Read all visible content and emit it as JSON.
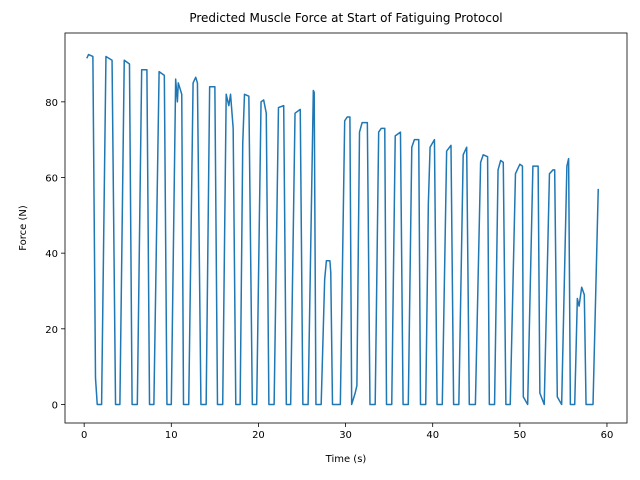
{
  "chart_data": {
    "type": "line",
    "title": "Predicted Muscle Force at Start of Fatiguing Protocol",
    "x_label": "Time (s)",
    "y_label": "Force (N)",
    "xlim": [
      -2.2,
      62.3
    ],
    "ylim": [
      -4.9,
      98.2
    ],
    "xticks": [
      0,
      10,
      20,
      30,
      40,
      50,
      60
    ],
    "yticks": [
      0,
      20,
      40,
      60,
      80
    ],
    "grid": false,
    "series": [
      {
        "color": "#1f77b4",
        "x": [
          0.3,
          0.5,
          1.0,
          1.3,
          1.5,
          2.0,
          2.5,
          3.2,
          3.6,
          4.1,
          4.6,
          5.2,
          5.5,
          6.1,
          6.6,
          7.2,
          7.5,
          8.0,
          8.6,
          9.2,
          9.5,
          10.0,
          10.5,
          10.7,
          10.8,
          11.2,
          11.4,
          12.0,
          12.5,
          12.8,
          13.0,
          13.4,
          14.0,
          14.4,
          15.0,
          15.3,
          15.9,
          16.3,
          16.6,
          16.8,
          17.1,
          17.4,
          17.9,
          18.2,
          18.4,
          18.9,
          19.3,
          19.8,
          20.3,
          20.6,
          20.9,
          21.2,
          21.8,
          22.3,
          22.9,
          23.2,
          23.7,
          24.2,
          24.8,
          25.1,
          25.7,
          26.3,
          26.4,
          26.6,
          27.2,
          27.6,
          27.8,
          28.2,
          28.3,
          28.5,
          29.4,
          29.9,
          30.2,
          30.5,
          30.7,
          31.1,
          31.3,
          31.6,
          31.9,
          32.5,
          32.8,
          33.4,
          33.8,
          34.1,
          34.5,
          34.7,
          35.3,
          35.7,
          36.3,
          36.6,
          37.2,
          37.6,
          37.9,
          38.4,
          38.6,
          39.2,
          39.5,
          39.7,
          40.2,
          40.5,
          41.1,
          41.6,
          42.1,
          42.4,
          43.0,
          43.5,
          43.9,
          44.2,
          44.9,
          45.5,
          45.8,
          46.3,
          46.5,
          47.1,
          47.5,
          47.8,
          48.1,
          48.4,
          48.9,
          49.5,
          50.0,
          50.3,
          50.4,
          50.9,
          51.5,
          52.1,
          52.3,
          52.8,
          53.4,
          53.8,
          54.0,
          54.3,
          54.8,
          55.4,
          55.6,
          55.8,
          56.3,
          56.6,
          56.8,
          57.1,
          57.4,
          57.6,
          58.4,
          59.0
        ],
        "values": [
          91.5,
          92.5,
          92,
          7,
          0,
          0,
          92,
          91,
          0,
          0,
          91,
          90,
          0,
          0,
          88.5,
          88.5,
          0,
          0,
          88,
          87,
          0,
          0,
          86,
          80,
          85,
          82,
          0,
          0,
          85,
          86.5,
          85,
          0,
          0,
          84,
          84,
          0,
          0,
          82,
          79,
          82,
          73,
          0,
          0,
          69,
          82,
          81.5,
          0,
          0,
          80,
          80.5,
          77,
          0,
          0,
          78.5,
          79,
          0,
          0,
          77,
          78,
          0,
          0,
          83,
          82.5,
          0,
          0,
          33,
          38,
          38,
          35,
          0,
          0,
          75,
          76,
          76,
          0,
          3,
          5,
          72,
          74.5,
          74.5,
          0,
          0,
          72,
          73,
          73,
          0,
          0,
          71,
          72,
          0,
          0,
          68,
          70,
          70,
          0,
          0,
          53,
          68,
          70,
          0,
          0,
          67,
          68.5,
          0,
          0,
          66,
          68,
          0,
          0,
          64,
          66,
          65.5,
          0,
          0,
          62,
          64.5,
          64,
          0,
          0,
          61,
          63.5,
          63,
          2,
          0,
          63,
          63,
          3,
          0,
          61,
          62,
          62,
          2,
          0,
          63,
          65,
          0,
          0,
          28,
          26,
          31,
          29,
          0,
          0,
          57
        ]
      }
    ]
  }
}
